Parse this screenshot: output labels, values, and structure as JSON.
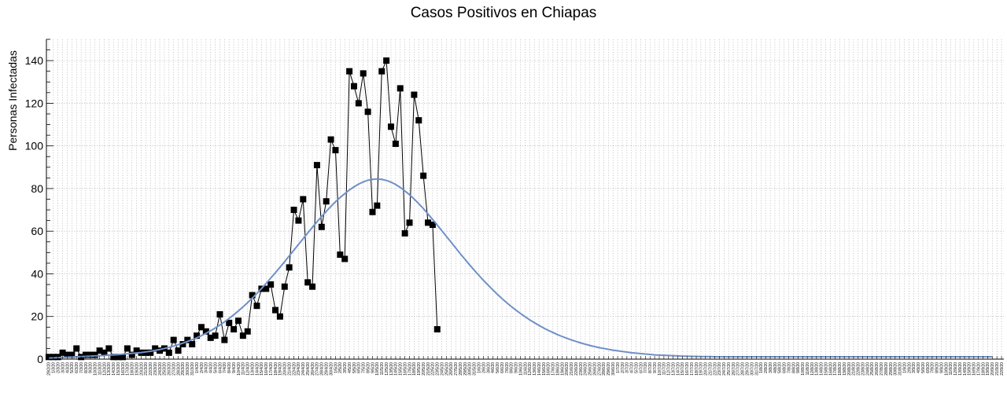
{
  "chart_data": {
    "type": "line",
    "title": "Casos Positivos en Chiapas",
    "xlabel": "",
    "ylabel": "Personas Infectadas",
    "ylim": [
      0,
      150
    ],
    "yticks": [
      0,
      20,
      40,
      60,
      80,
      100,
      120,
      140
    ],
    "grid": true,
    "x_dates": [
      "29/2/20",
      "1/3/20",
      "2/3/20",
      "3/3/20",
      "4/3/20",
      "5/3/20",
      "6/3/20",
      "7/3/20",
      "8/3/20",
      "9/3/20",
      "10/3/20",
      "11/3/20",
      "12/3/20",
      "13/3/20",
      "14/3/20",
      "15/3/20",
      "16/3/20",
      "17/3/20",
      "18/3/20",
      "19/3/20",
      "20/3/20",
      "21/3/20",
      "22/3/20",
      "23/3/20",
      "24/3/20",
      "25/3/20",
      "26/3/20",
      "27/3/20",
      "28/3/20",
      "29/3/20",
      "30/3/20",
      "31/3/20",
      "1/4/20",
      "2/4/20",
      "3/4/20",
      "4/4/20",
      "5/4/20",
      "6/4/20",
      "7/4/20",
      "8/4/20",
      "9/4/20",
      "10/4/20",
      "11/4/20",
      "12/4/20",
      "13/4/20",
      "14/4/20",
      "15/4/20",
      "16/4/20",
      "17/4/20",
      "18/4/20",
      "19/4/20",
      "20/4/20",
      "21/4/20",
      "22/4/20",
      "23/4/20",
      "24/4/20",
      "25/4/20",
      "26/4/20",
      "27/4/20",
      "28/4/20",
      "29/4/20",
      "30/4/20",
      "1/5/20",
      "2/5/20",
      "3/5/20",
      "4/5/20",
      "5/5/20",
      "6/5/20",
      "7/5/20",
      "8/5/20",
      "9/5/20",
      "10/5/20",
      "11/5/20",
      "12/5/20",
      "13/5/20",
      "14/5/20",
      "15/5/20",
      "16/5/20",
      "17/5/20",
      "18/5/20",
      "19/5/20",
      "20/5/20",
      "21/5/20",
      "22/5/20",
      "23/5/20",
      "24/5/20",
      "25/5/20",
      "26/5/20",
      "27/5/20",
      "28/5/20",
      "29/5/20",
      "30/5/20",
      "31/5/20",
      "1/6/20",
      "2/6/20",
      "3/6/20",
      "4/6/20",
      "5/6/20",
      "6/6/20",
      "7/6/20",
      "8/6/20",
      "9/6/20",
      "10/6/20",
      "11/6/20",
      "12/6/20",
      "13/6/20",
      "14/6/20",
      "15/6/20",
      "16/6/20",
      "17/6/20",
      "18/6/20",
      "19/6/20",
      "20/6/20",
      "21/6/20",
      "22/6/20",
      "23/6/20",
      "24/6/20",
      "25/6/20",
      "26/6/20",
      "27/6/20",
      "28/6/20",
      "29/6/20",
      "30/6/20",
      "1/7/20",
      "2/7/20",
      "3/7/20",
      "4/7/20",
      "5/7/20",
      "6/7/20",
      "7/7/20",
      "8/7/20",
      "9/7/20",
      "10/7/20",
      "11/7/20",
      "12/7/20",
      "13/7/20",
      "14/7/20",
      "15/7/20",
      "16/7/20",
      "17/7/20",
      "18/7/20",
      "19/7/20",
      "20/7/20",
      "21/7/20",
      "22/7/20",
      "23/7/20",
      "24/7/20",
      "25/7/20",
      "26/7/20",
      "27/7/20",
      "28/7/20",
      "29/7/20",
      "30/7/20",
      "31/7/20",
      "1/8/20",
      "2/8/20",
      "3/8/20",
      "4/8/20",
      "5/8/20",
      "6/8/20",
      "7/8/20",
      "8/8/20",
      "9/8/20",
      "10/8/20",
      "11/8/20",
      "12/8/20",
      "13/8/20",
      "14/8/20",
      "15/8/20",
      "16/8/20",
      "17/8/20",
      "18/8/20",
      "19/8/20",
      "20/8/20",
      "21/8/20",
      "22/8/20",
      "23/8/20",
      "24/8/20",
      "25/8/20",
      "26/8/20",
      "27/8/20",
      "28/8/20",
      "29/8/20",
      "30/8/20",
      "31/8/20",
      "1/9/20",
      "2/9/20",
      "3/9/20",
      "4/9/20",
      "5/9/20",
      "6/9/20",
      "7/9/20",
      "8/9/20",
      "9/9/20",
      "10/9/20",
      "11/9/20",
      "12/9/20",
      "13/9/20",
      "14/9/20",
      "15/9/20",
      "16/9/20",
      "17/9/20",
      "18/9/20",
      "19/9/20",
      "20/9/20",
      "21/9/20",
      "22/9/20"
    ],
    "series": [
      {
        "style": "markers-line",
        "color": "#000000",
        "values": [
          1,
          1,
          1,
          3,
          2,
          2,
          5,
          1,
          2,
          2,
          2,
          4,
          3,
          5,
          1,
          1,
          1,
          5,
          2,
          4,
          3,
          3,
          3,
          5,
          4,
          5,
          3,
          9,
          4,
          7,
          9,
          7,
          11,
          15,
          13,
          10,
          11,
          21,
          9,
          17,
          14,
          18,
          11,
          13,
          30,
          25,
          33,
          33,
          35,
          23,
          20,
          34,
          43,
          70,
          65,
          75,
          36,
          34,
          91,
          62,
          74,
          103,
          98,
          49,
          47,
          135,
          128,
          120,
          134,
          116,
          69,
          72,
          135,
          140,
          109,
          101,
          127,
          59,
          64,
          124,
          112,
          86,
          64,
          63,
          14
        ]
      },
      {
        "style": "line",
        "color": "#7090c8",
        "values": [
          0.5,
          0.6,
          0.7,
          0.8,
          0.9,
          1,
          1.1,
          1.2,
          1.3,
          1.4,
          1.5,
          1.6,
          1.7,
          1.9,
          2,
          2.1,
          2.3,
          2.5,
          2.7,
          2.9,
          3.1,
          3.4,
          3.7,
          4.1,
          4.5,
          5,
          5.5,
          6.1,
          6.8,
          7.5,
          8.3,
          9.1,
          10,
          11,
          12.1,
          13.3,
          14.6,
          16,
          17.5,
          19.1,
          20.8,
          22.6,
          24.5,
          26.5,
          28.6,
          30.8,
          33.1,
          35.5,
          38,
          40.5,
          43.1,
          45.7,
          48.4,
          51.1,
          53.8,
          56.5,
          59.2,
          61.8,
          64.4,
          66.9,
          69.3,
          71.6,
          73.8,
          75.8,
          77.6,
          79.3,
          80.8,
          82.1,
          83.1,
          83.9,
          84.3,
          84.5,
          84.3,
          83.8,
          83,
          81.9,
          80.5,
          78.9,
          77.1,
          75.1,
          72.9,
          70.6,
          68.1,
          65.5,
          62.9,
          60.2,
          57.5,
          54.8,
          52.1,
          49.4,
          46.8,
          44.2,
          41.7,
          39.3,
          36.9,
          34.7,
          32.5,
          30.4,
          28.4,
          26.5,
          24.7,
          23,
          21.4,
          19.9,
          18.4,
          17.1,
          15.8,
          14.6,
          13.5,
          12.5,
          11.5,
          10.6,
          9.8,
          9,
          8.3,
          7.6,
          7,
          6.4,
          5.9,
          5.4,
          5,
          4.6,
          4.2,
          3.9,
          3.6,
          3.3,
          3,
          2.8,
          2.6,
          2.4,
          2.2,
          2,
          1.9,
          1.8,
          1.7,
          1.6,
          1.5,
          1.4,
          1.4,
          1.3,
          1.3,
          1.2,
          1.2,
          1.2,
          1.1,
          1.1,
          1.1,
          1.1,
          1.1,
          1.1,
          1.1,
          1.1,
          1.1,
          1.1,
          1.1,
          1.1,
          1.1,
          1.1,
          1.1,
          1.1,
          1.1,
          1.1,
          1.1,
          1.1,
          1.1,
          1.1,
          1.1,
          1.1,
          1.1,
          1.1,
          1.1,
          1.1,
          1.1,
          1.1,
          1.1,
          1.1,
          1.1,
          1.1,
          1.1,
          1.1,
          1.1,
          1.1,
          1.1,
          1.1,
          1.1,
          1.1,
          1.1,
          1.1,
          1.1,
          1.1,
          1.1,
          1.1,
          1.1,
          1.1,
          1.1,
          1.1,
          1.1,
          1.1,
          1.1,
          1.1,
          1.1,
          1.1,
          1.1,
          1.1,
          1.1
        ]
      }
    ]
  }
}
